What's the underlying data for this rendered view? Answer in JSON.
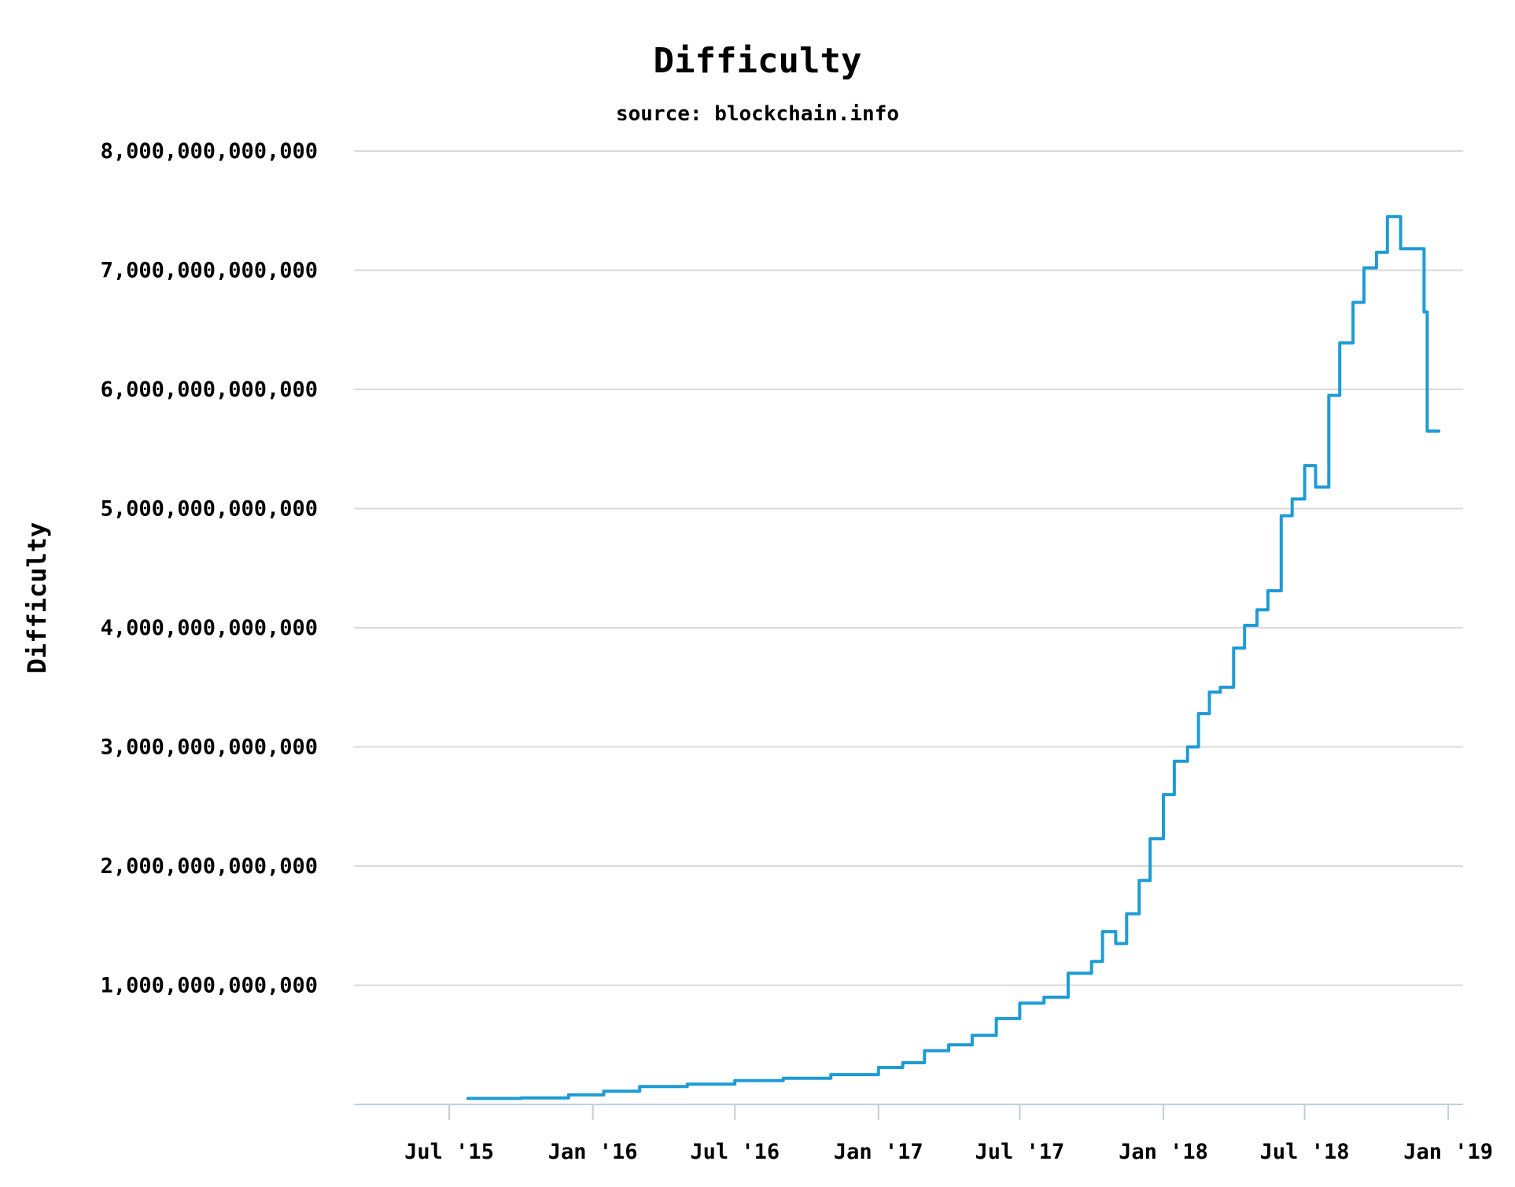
{
  "chart_data": {
    "type": "line",
    "title": "Difficulty",
    "subtitle": "source: blockchain.info",
    "ylabel": "Difficulty",
    "xlabel": "",
    "grid": true,
    "legend": "none",
    "ylim": [
      0,
      8000000000000
    ],
    "xlim": [
      "2015-03-01",
      "2019-01-20"
    ],
    "y_ticks": [
      {
        "value": 1000000000000,
        "label": "1,000,000,000,000"
      },
      {
        "value": 2000000000000,
        "label": "2,000,000,000,000"
      },
      {
        "value": 3000000000000,
        "label": "3,000,000,000,000"
      },
      {
        "value": 4000000000000,
        "label": "4,000,000,000,000"
      },
      {
        "value": 5000000000000,
        "label": "5,000,000,000,000"
      },
      {
        "value": 6000000000000,
        "label": "6,000,000,000,000"
      },
      {
        "value": 7000000000000,
        "label": "7,000,000,000,000"
      },
      {
        "value": 8000000000000,
        "label": "8,000,000,000,000"
      }
    ],
    "x_ticks": [
      {
        "value": "2015-07-01",
        "label": "Jul '15"
      },
      {
        "value": "2016-01-01",
        "label": "Jan '16"
      },
      {
        "value": "2016-07-01",
        "label": "Jul '16"
      },
      {
        "value": "2017-01-01",
        "label": "Jan '17"
      },
      {
        "value": "2017-07-01",
        "label": "Jul '17"
      },
      {
        "value": "2018-01-01",
        "label": "Jan '18"
      },
      {
        "value": "2018-07-01",
        "label": "Jul '18"
      },
      {
        "value": "2019-01-01",
        "label": "Jan '19"
      }
    ],
    "series": [
      {
        "color": "#1f9bd6",
        "x": [
          "2015-07-25",
          "2015-10-01",
          "2015-12-01",
          "2016-01-15",
          "2016-03-01",
          "2016-05-01",
          "2016-07-01",
          "2016-09-01",
          "2016-11-01",
          "2017-01-01",
          "2017-02-01",
          "2017-03-01",
          "2017-04-01",
          "2017-05-01",
          "2017-06-01",
          "2017-07-01",
          "2017-08-01",
          "2017-09-01",
          "2017-10-01",
          "2017-10-15",
          "2017-11-01",
          "2017-11-15",
          "2017-12-01",
          "2017-12-15",
          "2018-01-01",
          "2018-01-15",
          "2018-02-01",
          "2018-02-15",
          "2018-03-01",
          "2018-03-15",
          "2018-04-01",
          "2018-04-15",
          "2018-05-01",
          "2018-05-15",
          "2018-06-01",
          "2018-06-15",
          "2018-07-01",
          "2018-07-15",
          "2018-08-01",
          "2018-08-15",
          "2018-09-01",
          "2018-09-15",
          "2018-10-01",
          "2018-10-15",
          "2018-11-01",
          "2018-11-15",
          "2018-12-01",
          "2018-12-05",
          "2018-12-20"
        ],
        "y": [
          50000000000,
          55000000000,
          80000000000,
          110000000000,
          150000000000,
          170000000000,
          200000000000,
          220000000000,
          250000000000,
          310000000000,
          350000000000,
          450000000000,
          500000000000,
          580000000000,
          720000000000,
          850000000000,
          900000000000,
          1100000000000,
          1200000000000,
          1450000000000,
          1350000000000,
          1600000000000,
          1880000000000,
          2230000000000,
          2600000000000,
          2880000000000,
          3000000000000,
          3280000000000,
          3460000000000,
          3500000000000,
          3830000000000,
          4020000000000,
          4150000000000,
          4310000000000,
          4940000000000,
          5080000000000,
          5360000000000,
          5180000000000,
          5950000000000,
          6390000000000,
          6730000000000,
          7020000000000,
          7150000000000,
          7450000000000,
          7180000000000,
          7180000000000,
          6650000000000,
          5650000000000,
          5650000000000
        ]
      }
    ]
  }
}
